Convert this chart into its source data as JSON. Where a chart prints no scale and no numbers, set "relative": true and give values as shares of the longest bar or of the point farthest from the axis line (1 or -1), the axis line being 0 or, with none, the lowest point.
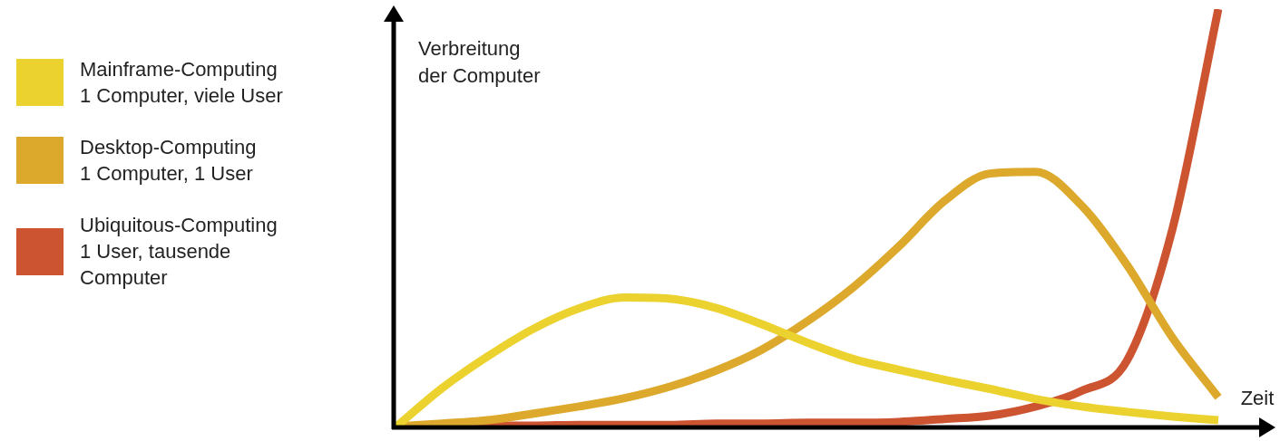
{
  "chart_data": {
    "type": "line",
    "relative": true,
    "xlabel": "Zeit",
    "ylabel": "Verbreitung\nder Computer",
    "legend": "left",
    "marker": "none",
    "categories": [
      null,
      null,
      null,
      null,
      null,
      null,
      null,
      null,
      null,
      null,
      null,
      null,
      null,
      null,
      null,
      null,
      null,
      null,
      null
    ],
    "series": [
      {
        "name": "Mainframe-Computing\n1 Computer, viele User",
        "color": "#ecd22e",
        "values": [
          0,
          0.092,
          0.168,
          0.234,
          0.283,
          0.309,
          0.306,
          0.284,
          0.245,
          0.201,
          0.162,
          0.136,
          0.112,
          0.09,
          0.066,
          0.048,
          0.035,
          0.024,
          0.015
        ]
      },
      {
        "name": "Desktop-Computing\n1 Computer, 1 User",
        "color": "#dda92c",
        "values": [
          0,
          0.007,
          0.015,
          0.031,
          0.048,
          0.068,
          0.096,
          0.134,
          0.184,
          0.252,
          0.333,
          0.431,
          0.54,
          0.606,
          0.61,
          0.53,
          0.387,
          0.212,
          0.07
        ]
      },
      {
        "name": "Ubiquitous-Computing\n1 User, tausende\nComputer",
        "color": "#cd5430",
        "values": [
          0,
          0,
          0.002,
          0.002,
          0.004,
          0.004,
          0.004,
          0.007,
          0.007,
          0.009,
          0.009,
          0.011,
          0.018,
          0.026,
          0.048,
          0.085,
          0.158,
          0.475,
          1
        ]
      }
    ]
  }
}
